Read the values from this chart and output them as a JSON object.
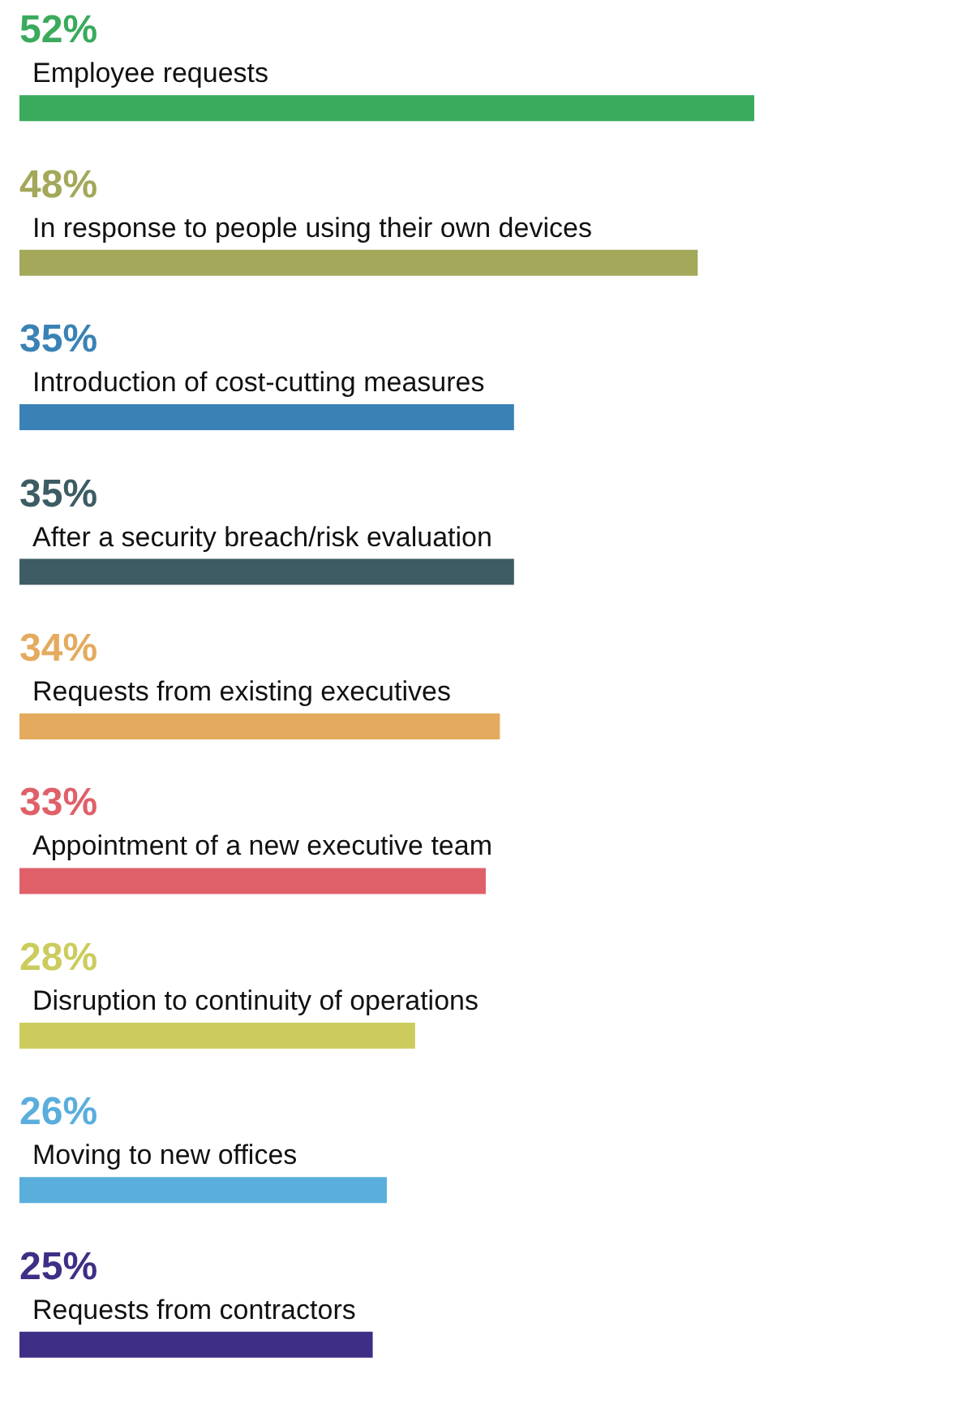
{
  "chart_data": {
    "type": "bar",
    "orientation": "horizontal",
    "categories": [
      "Employee requests",
      "In response to people using their own devices",
      "Introduction of cost-cutting measures",
      "After a security breach/risk evaluation",
      "Requests from existing executives",
      "Appointment of a new executive team",
      "Disruption to continuity of operations",
      "Moving to new offices",
      "Requests from contractors"
    ],
    "values": [
      52,
      48,
      35,
      35,
      34,
      33,
      28,
      26,
      25
    ],
    "value_labels": [
      "52%",
      "48%",
      "35%",
      "35%",
      "34%",
      "33%",
      "28%",
      "26%",
      "25%"
    ],
    "colors": [
      "#3aaa5c",
      "#a3a85a",
      "#3a82b5",
      "#3d5c63",
      "#e4ab5f",
      "#e0606a",
      "#cccc5e",
      "#5aaedc",
      "#3f2e86"
    ],
    "tick_labels": "y"
  }
}
